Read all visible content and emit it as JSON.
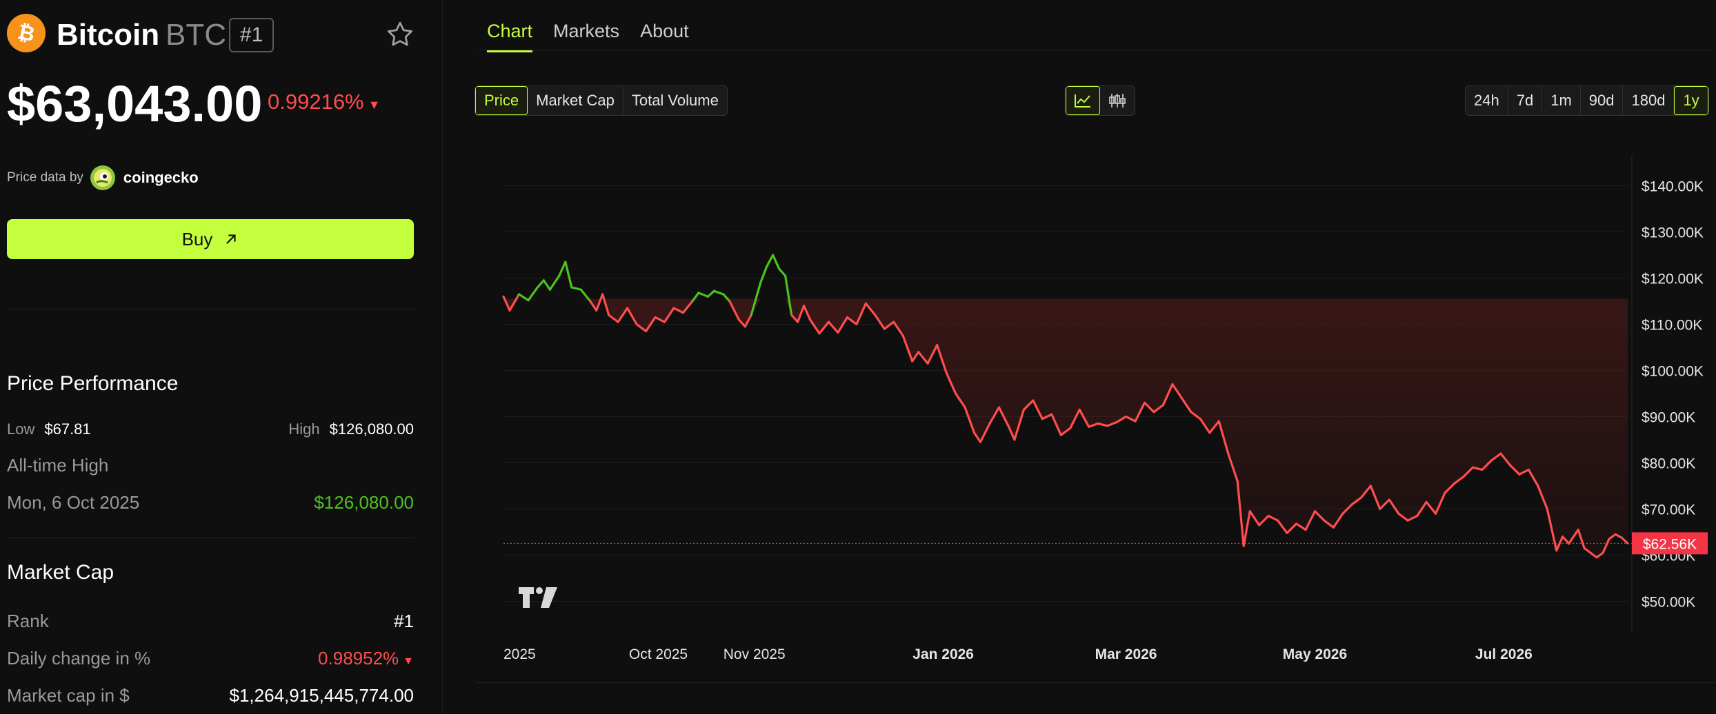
{
  "coin": {
    "name": "Bitcoin",
    "symbol": "BTC",
    "rank_badge": "#1",
    "price": "$63,043.00",
    "change_pct": "0.99216%",
    "price_data_by": "Price data by",
    "provider": "coingecko",
    "buy_label": "Buy"
  },
  "performance": {
    "title": "Price Performance",
    "low_label": "Low",
    "low_value": "$67.81",
    "high_label": "High",
    "high_value": "$126,080.00",
    "ath_label": "All-time High",
    "ath_date": "Mon, 6 Oct 2025",
    "ath_value": "$126,080.00"
  },
  "market_cap": {
    "title": "Market Cap",
    "rows": [
      {
        "label": "Rank",
        "value": "#1"
      },
      {
        "label": "Daily change in %",
        "value": "0.98952%"
      },
      {
        "label": "Market cap in $",
        "value": "$1,264,915,445,774.00"
      }
    ]
  },
  "tabs": [
    {
      "label": "Chart"
    },
    {
      "label": "Markets"
    },
    {
      "label": "About"
    }
  ],
  "metric_buttons": [
    "Price",
    "Market Cap",
    "Total Volume"
  ],
  "range_buttons": [
    "24h",
    "7d",
    "1m",
    "90d",
    "180d",
    "1y"
  ],
  "colors": {
    "accent": "#c4ff3d",
    "up": "#4cc21e",
    "down": "#ff4d4d",
    "btc": "#f7931a"
  },
  "chart_data": {
    "type": "line",
    "title": "",
    "ylim": [
      45000,
      145000
    ],
    "y_ticks": [
      "$140.00K",
      "$130.00K",
      "$120.00K",
      "$110.00K",
      "$100.00K",
      "$90.00K",
      "$80.00K",
      "$70.00K",
      "$60.00K",
      "$50.00K"
    ],
    "y_tick_values": [
      140000,
      130000,
      120000,
      110000,
      100000,
      90000,
      80000,
      70000,
      60000,
      50000
    ],
    "x_ticks": [
      {
        "label": "2025",
        "date": "2025-08-12"
      },
      {
        "label": "Oct 2025",
        "date": "2025-10-01"
      },
      {
        "label": "Nov 2025",
        "date": "2025-11-01"
      },
      {
        "label": "Jan 2026",
        "date": "2026-01-01"
      },
      {
        "label": "Mar 2026",
        "date": "2026-03-01"
      },
      {
        "label": "May 2026",
        "date": "2026-05-01"
      },
      {
        "label": "Jul 2026",
        "date": "2026-07-01"
      }
    ],
    "x_range": [
      "2025-08-12",
      "2026-08-10"
    ],
    "baseline": 115500,
    "current_value": 62560,
    "current_label": "$62.56K",
    "series": [
      {
        "points": [
          [
            "2025-08-12",
            116000
          ],
          [
            "2025-08-14",
            113000
          ],
          [
            "2025-08-17",
            116500
          ],
          [
            "2025-08-20",
            115200
          ],
          [
            "2025-08-23",
            118000
          ],
          [
            "2025-08-25",
            119500
          ],
          [
            "2025-08-27",
            117500
          ],
          [
            "2025-08-30",
            120500
          ],
          [
            "2025-09-01",
            123500
          ],
          [
            "2025-09-03",
            118000
          ],
          [
            "2025-09-06",
            117500
          ],
          [
            "2025-09-09",
            115000
          ],
          [
            "2025-09-11",
            113000
          ],
          [
            "2025-09-13",
            116500
          ],
          [
            "2025-09-15",
            112000
          ],
          [
            "2025-09-18",
            110500
          ],
          [
            "2025-09-21",
            113500
          ],
          [
            "2025-09-24",
            110000
          ],
          [
            "2025-09-27",
            108500
          ],
          [
            "2025-09-30",
            111500
          ],
          [
            "2025-10-03",
            110500
          ],
          [
            "2025-10-06",
            113500
          ],
          [
            "2025-10-09",
            112500
          ],
          [
            "2025-10-12",
            115000
          ],
          [
            "2025-10-14",
            116800
          ],
          [
            "2025-10-17",
            116000
          ],
          [
            "2025-10-19",
            117200
          ],
          [
            "2025-10-22",
            116500
          ],
          [
            "2025-10-24",
            115000
          ],
          [
            "2025-10-27",
            111000
          ],
          [
            "2025-10-29",
            109500
          ],
          [
            "2025-10-31",
            112000
          ],
          [
            "2025-11-03",
            119000
          ],
          [
            "2025-11-05",
            122500
          ],
          [
            "2025-11-07",
            125000
          ],
          [
            "2025-11-09",
            122000
          ],
          [
            "2025-11-11",
            120500
          ],
          [
            "2025-11-13",
            112000
          ],
          [
            "2025-11-15",
            110500
          ],
          [
            "2025-11-17",
            114000
          ],
          [
            "2025-11-19",
            111000
          ],
          [
            "2025-11-22",
            108000
          ],
          [
            "2025-11-25",
            110500
          ],
          [
            "2025-11-28",
            108200
          ],
          [
            "2025-12-01",
            111500
          ],
          [
            "2025-12-04",
            110000
          ],
          [
            "2025-12-07",
            114500
          ],
          [
            "2025-12-10",
            112000
          ],
          [
            "2025-12-13",
            109000
          ],
          [
            "2025-12-16",
            110500
          ],
          [
            "2025-12-19",
            107500
          ],
          [
            "2025-12-22",
            102000
          ],
          [
            "2025-12-24",
            104000
          ],
          [
            "2025-12-27",
            101500
          ],
          [
            "2025-12-30",
            105500
          ],
          [
            "2026-01-02",
            99500
          ],
          [
            "2026-01-05",
            95000
          ],
          [
            "2026-01-08",
            92000
          ],
          [
            "2026-01-11",
            86500
          ],
          [
            "2026-01-13",
            84500
          ],
          [
            "2026-01-16",
            88500
          ],
          [
            "2026-01-19",
            92000
          ],
          [
            "2026-01-22",
            88000
          ],
          [
            "2026-01-24",
            85000
          ],
          [
            "2026-01-27",
            91500
          ],
          [
            "2026-01-30",
            93500
          ],
          [
            "2026-02-02",
            89500
          ],
          [
            "2026-02-05",
            90500
          ],
          [
            "2026-02-08",
            86000
          ],
          [
            "2026-02-11",
            87500
          ],
          [
            "2026-02-14",
            91500
          ],
          [
            "2026-02-17",
            87800
          ],
          [
            "2026-02-20",
            88500
          ],
          [
            "2026-02-23",
            88000
          ],
          [
            "2026-02-26",
            88800
          ],
          [
            "2026-03-01",
            90000
          ],
          [
            "2026-03-04",
            89000
          ],
          [
            "2026-03-07",
            93000
          ],
          [
            "2026-03-10",
            91000
          ],
          [
            "2026-03-13",
            92500
          ],
          [
            "2026-03-16",
            97000
          ],
          [
            "2026-03-19",
            94000
          ],
          [
            "2026-03-22",
            91000
          ],
          [
            "2026-03-25",
            89500
          ],
          [
            "2026-03-28",
            86500
          ],
          [
            "2026-03-31",
            89000
          ],
          [
            "2026-04-03",
            82000
          ],
          [
            "2026-04-06",
            76000
          ],
          [
            "2026-04-08",
            62000
          ],
          [
            "2026-04-10",
            69500
          ],
          [
            "2026-04-13",
            66500
          ],
          [
            "2026-04-16",
            68500
          ],
          [
            "2026-04-19",
            67500
          ],
          [
            "2026-04-22",
            64800
          ],
          [
            "2026-04-25",
            66800
          ],
          [
            "2026-04-28",
            65500
          ],
          [
            "2026-05-01",
            69500
          ],
          [
            "2026-05-04",
            67500
          ],
          [
            "2026-05-07",
            66000
          ],
          [
            "2026-05-10",
            69000
          ],
          [
            "2026-05-13",
            71000
          ],
          [
            "2026-05-16",
            72500
          ],
          [
            "2026-05-19",
            75000
          ],
          [
            "2026-05-22",
            70000
          ],
          [
            "2026-05-25",
            72000
          ],
          [
            "2026-05-28",
            69000
          ],
          [
            "2026-05-31",
            67500
          ],
          [
            "2026-06-03",
            68500
          ],
          [
            "2026-06-06",
            71500
          ],
          [
            "2026-06-09",
            69000
          ],
          [
            "2026-06-12",
            73500
          ],
          [
            "2026-06-15",
            75500
          ],
          [
            "2026-06-18",
            77000
          ],
          [
            "2026-06-21",
            79000
          ],
          [
            "2026-06-24",
            78500
          ],
          [
            "2026-06-27",
            80500
          ],
          [
            "2026-06-30",
            82000
          ],
          [
            "2026-07-03",
            79500
          ],
          [
            "2026-07-06",
            77500
          ],
          [
            "2026-07-09",
            78500
          ],
          [
            "2026-07-12",
            75000
          ],
          [
            "2026-07-15",
            70000
          ],
          [
            "2026-07-18",
            61000
          ],
          [
            "2026-07-20",
            64000
          ],
          [
            "2026-07-22",
            62500
          ],
          [
            "2026-07-25",
            65500
          ],
          [
            "2026-07-27",
            61500
          ],
          [
            "2026-07-29",
            60500
          ],
          [
            "2026-07-31",
            59500
          ],
          [
            "2026-08-02",
            60500
          ],
          [
            "2026-08-04",
            63500
          ],
          [
            "2026-08-06",
            64500
          ],
          [
            "2026-08-08",
            63800
          ],
          [
            "2026-08-10",
            62560
          ]
        ]
      }
    ],
    "chart_type_buttons": [
      "line-chart-icon",
      "candlestick-icon"
    ]
  }
}
